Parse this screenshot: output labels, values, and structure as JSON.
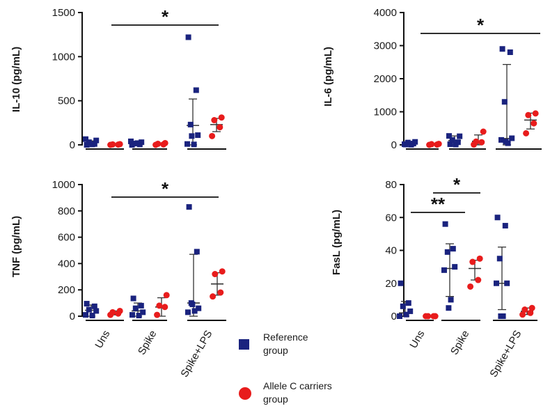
{
  "legend": [
    {
      "label_lines": [
        "Reference",
        "group"
      ],
      "color": "#1a237e",
      "shape": "square"
    },
    {
      "label_lines": [
        "Allele C carriers",
        "group"
      ],
      "color": "#e81c1c",
      "shape": "circle"
    }
  ],
  "colors": {
    "reference": "#1a237e",
    "allele": "#e81c1c",
    "axis": "#111111"
  },
  "chart_data": [
    {
      "type": "scatter",
      "ylabel": "IL-10 (pg/mL)",
      "ylim": [
        0,
        1500
      ],
      "yticks": [
        0,
        500,
        1000,
        1500
      ],
      "categories": [
        "Uns",
        "Spike",
        "Spike+LPS"
      ],
      "significance": [
        {
          "label": "*",
          "from": "Uns",
          "to": "Spike+LPS"
        }
      ],
      "groups": [
        {
          "category": "Uns",
          "series": "Reference",
          "points": [
            0,
            10,
            30,
            50,
            65,
            5
          ],
          "mean": 25,
          "sd_low": 0,
          "sd_high": 45
        },
        {
          "category": "Uns",
          "series": "Allele C carriers",
          "points": [
            0,
            3,
            5,
            8
          ],
          "mean": 4,
          "sd_low": 0,
          "sd_high": 8
        },
        {
          "category": "Spike",
          "series": "Reference",
          "points": [
            0,
            5,
            15,
            30,
            40,
            20
          ],
          "mean": 18,
          "sd_low": 0,
          "sd_high": 35
        },
        {
          "category": "Spike",
          "series": "Allele C carriers",
          "points": [
            0,
            5,
            12,
            20
          ],
          "mean": 10,
          "sd_low": 0,
          "sd_high": 20
        },
        {
          "category": "Spike+LPS",
          "series": "Reference",
          "points": [
            1220,
            620,
            230,
            110,
            10,
            5,
            100
          ],
          "mean": 220,
          "sd_low": 0,
          "sd_high": 520
        },
        {
          "category": "Spike+LPS",
          "series": "Allele C carriers",
          "points": [
            100,
            200,
            280,
            310
          ],
          "mean": 230,
          "sd_low": 150,
          "sd_high": 300
        }
      ]
    },
    {
      "type": "scatter",
      "ylabel": "IL-6 (pg/mL)",
      "ylim": [
        0,
        4000
      ],
      "yticks": [
        0,
        1000,
        2000,
        3000,
        4000
      ],
      "categories": [
        "Uns",
        "Spike",
        "Spike+LPS"
      ],
      "significance": [
        {
          "label": "*",
          "from": "Uns",
          "to": "Spike+LPS"
        }
      ],
      "groups": [
        {
          "category": "Uns",
          "series": "Reference",
          "points": [
            10,
            40,
            70,
            90,
            20,
            5
          ],
          "mean": 40,
          "sd_low": 0,
          "sd_high": 90
        },
        {
          "category": "Uns",
          "series": "Allele C carriers",
          "points": [
            0,
            10,
            20,
            30
          ],
          "mean": 15,
          "sd_low": 0,
          "sd_high": 30
        },
        {
          "category": "Spike",
          "series": "Reference",
          "points": [
            20,
            80,
            150,
            260,
            270,
            10
          ],
          "mean": 130,
          "sd_low": 0,
          "sd_high": 270
        },
        {
          "category": "Spike",
          "series": "Allele C carriers",
          "points": [
            10,
            80,
            100,
            400
          ],
          "mean": 110,
          "sd_low": 0,
          "sd_high": 300
        },
        {
          "category": "Spike+LPS",
          "series": "Reference",
          "points": [
            2900,
            2800,
            1300,
            200,
            150,
            50,
            100
          ],
          "mean": 190,
          "sd_low": 0,
          "sd_high": 2430
        },
        {
          "category": "Spike+LPS",
          "series": "Allele C carriers",
          "points": [
            350,
            650,
            900,
            950
          ],
          "mean": 750,
          "sd_low": 480,
          "sd_high": 960
        }
      ]
    },
    {
      "type": "scatter",
      "ylabel": "TNF (pg/mL)",
      "ylim": [
        0,
        1000
      ],
      "yticks": [
        0,
        200,
        400,
        600,
        800,
        1000
      ],
      "categories": [
        "Uns",
        "Spike",
        "Spike+LPS"
      ],
      "significance": [
        {
          "label": "*",
          "from": "Uns",
          "to": "Spike+LPS"
        }
      ],
      "groups": [
        {
          "category": "Uns",
          "series": "Reference",
          "points": [
            95,
            75,
            50,
            40,
            10,
            5
          ],
          "mean": 45,
          "sd_low": 0,
          "sd_high": 85
        },
        {
          "category": "Uns",
          "series": "Allele C carriers",
          "points": [
            10,
            20,
            30,
            40
          ],
          "mean": 25,
          "sd_low": 10,
          "sd_high": 40
        },
        {
          "category": "Spike",
          "series": "Reference",
          "points": [
            135,
            80,
            60,
            30,
            10,
            5
          ],
          "mean": 40,
          "sd_low": 0,
          "sd_high": 100
        },
        {
          "category": "Spike",
          "series": "Allele C carriers",
          "points": [
            10,
            70,
            80,
            160
          ],
          "mean": 70,
          "sd_low": 0,
          "sd_high": 140
        },
        {
          "category": "Spike+LPS",
          "series": "Reference",
          "points": [
            830,
            490,
            100,
            60,
            30,
            40,
            90
          ],
          "mean": 100,
          "sd_low": 0,
          "sd_high": 470
        },
        {
          "category": "Spike+LPS",
          "series": "Allele C carriers",
          "points": [
            150,
            180,
            320,
            340
          ],
          "mean": 245,
          "sd_low": 160,
          "sd_high": 330
        }
      ]
    },
    {
      "type": "scatter",
      "ylabel": "FasL (pg/mL)",
      "ylim": [
        0,
        80
      ],
      "yticks": [
        0,
        20,
        40,
        60,
        80
      ],
      "categories": [
        "Uns",
        "Spike",
        "Spike+LPS"
      ],
      "significance": [
        {
          "label": "**",
          "from": "Uns",
          "to": "Spike"
        },
        {
          "label": "*",
          "from": "Spike",
          "to": "Spike+LPS"
        }
      ],
      "groups": [
        {
          "category": "Uns",
          "series": "Reference",
          "points": [
            20,
            8,
            6,
            3,
            0,
            1
          ],
          "mean": 2,
          "sd_low": 0,
          "sd_high": 9
        },
        {
          "category": "Uns",
          "series": "Allele C carriers",
          "points": [
            0,
            0,
            0,
            0
          ],
          "mean": 0,
          "sd_low": 0,
          "sd_high": 0
        },
        {
          "category": "Spike",
          "series": "Reference",
          "points": [
            56,
            41,
            39,
            30,
            28,
            10,
            5
          ],
          "mean": 29,
          "sd_low": 12,
          "sd_high": 44
        },
        {
          "category": "Spike",
          "series": "Allele C carriers",
          "points": [
            18,
            22,
            33,
            35
          ],
          "mean": 29,
          "sd_low": 22,
          "sd_high": 34
        },
        {
          "category": "Spike+LPS",
          "series": "Reference",
          "points": [
            60,
            55,
            35,
            20,
            20,
            0,
            0
          ],
          "mean": 20,
          "sd_low": 4,
          "sd_high": 42
        },
        {
          "category": "Spike+LPS",
          "series": "Allele C carriers",
          "points": [
            1,
            2,
            4,
            5
          ],
          "mean": 3,
          "sd_low": 1,
          "sd_high": 5
        }
      ]
    }
  ]
}
